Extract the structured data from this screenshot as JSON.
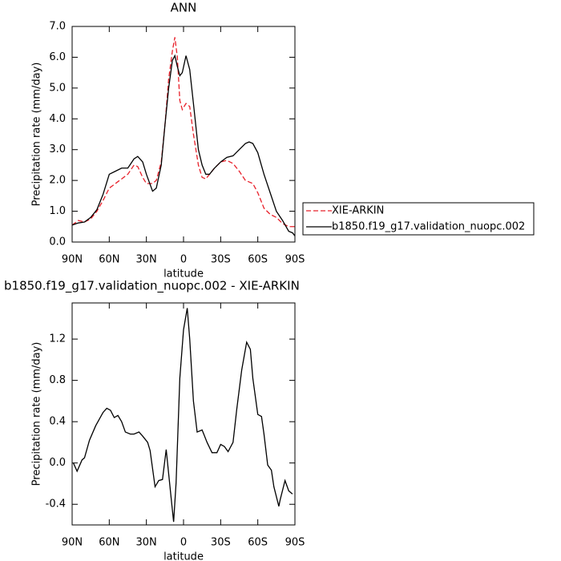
{
  "chart_data": [
    {
      "type": "line",
      "title": "ANN",
      "x_label": "latitude",
      "y_label": "Precipitation rate (mm/day)",
      "x": [
        90,
        85,
        80,
        75,
        70,
        65,
        60,
        55,
        50,
        45,
        40,
        37,
        33,
        30,
        25,
        22,
        18,
        15,
        12,
        9,
        7,
        5,
        3,
        1,
        -2,
        -5,
        -8,
        -12,
        -15,
        -18,
        -21,
        -25,
        -30,
        -35,
        -40,
        -45,
        -50,
        -53,
        -56,
        -60,
        -65,
        -70,
        -75,
        -80,
        -85,
        -88,
        -90
      ],
      "series": [
        {
          "name": "XIE-ARKIN",
          "color": "#e8202a",
          "line_style": "dashed",
          "values": [
            0.55,
            0.7,
            0.65,
            0.75,
            1.0,
            1.35,
            1.75,
            1.9,
            2.05,
            2.2,
            2.5,
            2.45,
            2.1,
            1.9,
            1.9,
            2.0,
            2.6,
            3.8,
            5.3,
            6.2,
            6.65,
            6.0,
            4.6,
            4.3,
            4.5,
            4.4,
            3.5,
            2.5,
            2.1,
            2.05,
            2.2,
            2.4,
            2.6,
            2.65,
            2.55,
            2.3,
            2.0,
            1.95,
            1.9,
            1.6,
            1.1,
            0.9,
            0.8,
            0.6,
            0.5,
            0.5,
            0.5
          ]
        },
        {
          "name": "b1850.f19_g17.validation_nuopc.002",
          "color": "#000000",
          "line_style": "solid",
          "values": [
            0.55,
            0.62,
            0.65,
            0.8,
            1.05,
            1.55,
            2.2,
            2.3,
            2.4,
            2.4,
            2.7,
            2.78,
            2.6,
            2.2,
            1.65,
            1.75,
            2.5,
            3.8,
            5.0,
            5.9,
            6.05,
            5.7,
            5.4,
            5.5,
            6.05,
            5.6,
            4.5,
            3.0,
            2.5,
            2.2,
            2.2,
            2.4,
            2.6,
            2.75,
            2.8,
            3.0,
            3.2,
            3.25,
            3.2,
            2.9,
            2.2,
            1.6,
            1.0,
            0.7,
            0.35,
            0.3,
            0.2
          ]
        }
      ],
      "xlim": [
        90,
        -90
      ],
      "xticks": [
        {
          "value": 90,
          "label": "90N"
        },
        {
          "value": 60,
          "label": "60N"
        },
        {
          "value": 30,
          "label": "30N"
        },
        0,
        {
          "value": -30,
          "label": "30S"
        },
        {
          "value": -60,
          "label": "60S"
        },
        {
          "value": -90,
          "label": "90S"
        }
      ],
      "ylim": [
        0,
        7
      ],
      "yticks": [
        {
          "value": 0,
          "label": "0.0"
        },
        {
          "value": 1,
          "label": "1.0"
        },
        {
          "value": 2,
          "label": "2.0"
        },
        {
          "value": 3,
          "label": "3.0"
        },
        {
          "value": 4,
          "label": "4.0"
        },
        {
          "value": 5,
          "label": "5.0"
        },
        {
          "value": 6,
          "label": "6.0"
        },
        {
          "value": 7,
          "label": "7.0"
        }
      ],
      "legend": "right"
    },
    {
      "type": "line",
      "title": "b1850.f19_g17.validation_nuopc.002 - XIE-ARKIN",
      "x_label": "latitude",
      "y_label": "Precipitation rate (mm/day)",
      "x": [
        89,
        86,
        82,
        80,
        76,
        71,
        65,
        62,
        59,
        56,
        53,
        50,
        47,
        43,
        40,
        36,
        33,
        29,
        27,
        23,
        20,
        17,
        14,
        10,
        8,
        6,
        3,
        0,
        -3,
        -5,
        -8,
        -11,
        -15,
        -19,
        -23,
        -27,
        -30,
        -33,
        -36,
        -40,
        -43,
        -47,
        -51,
        -54,
        -56,
        -60,
        -63,
        -65,
        -68,
        -71,
        -73,
        -77,
        -78,
        -82,
        -85,
        -88
      ],
      "series": [
        {
          "color": "#000000",
          "line_style": "solid",
          "values": [
            0.0,
            -0.08,
            0.03,
            0.05,
            0.22,
            0.36,
            0.49,
            0.53,
            0.51,
            0.44,
            0.46,
            0.4,
            0.3,
            0.28,
            0.28,
            0.3,
            0.26,
            0.2,
            0.12,
            -0.23,
            -0.17,
            -0.16,
            0.13,
            -0.34,
            -0.57,
            -0.19,
            0.82,
            1.29,
            1.5,
            1.2,
            0.6,
            0.3,
            0.32,
            0.2,
            0.1,
            0.1,
            0.18,
            0.16,
            0.11,
            0.2,
            0.52,
            0.9,
            1.17,
            1.1,
            0.82,
            0.47,
            0.45,
            0.28,
            -0.02,
            -0.07,
            -0.23,
            -0.42,
            -0.36,
            -0.17,
            -0.27,
            -0.3
          ]
        }
      ],
      "xlim": [
        90,
        -90
      ],
      "xticks": [
        {
          "value": 90,
          "label": "90N"
        },
        {
          "value": 60,
          "label": "60N"
        },
        {
          "value": 30,
          "label": "30N"
        },
        0,
        {
          "value": -30,
          "label": "30S"
        },
        {
          "value": -60,
          "label": "60S"
        },
        {
          "value": -90,
          "label": "90S"
        }
      ],
      "ylim": [
        -0.6,
        1.55
      ],
      "yticks": [
        {
          "value": -0.4,
          "label": "-0.4"
        },
        {
          "value": 0,
          "label": "0.0"
        },
        0.4,
        0.8,
        1.2
      ]
    }
  ]
}
